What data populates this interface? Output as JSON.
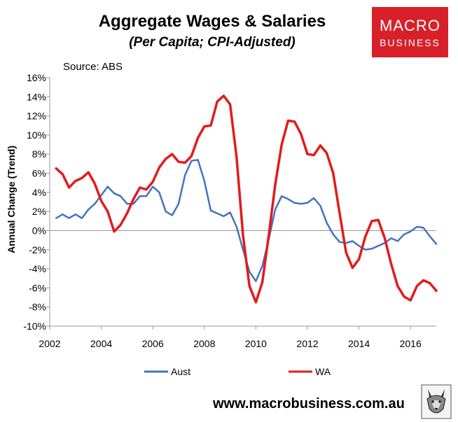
{
  "header": {
    "title": "Aggregate Wages & Salaries",
    "subtitle": "(Per Capita; CPI-Adjusted)",
    "source": "Source: ABS"
  },
  "logo": {
    "line1": "MACRO",
    "line2": "BUSINESS",
    "color": "#d8202a"
  },
  "footer": {
    "url": "www.macrobusiness.com.au",
    "mascot_icon": "wolf-icon"
  },
  "chart_data": {
    "type": "line",
    "title": "Aggregate Wages & Salaries",
    "subtitle": "(Per Capita; CPI-Adjusted)",
    "xlabel": "",
    "ylabel": "Annual Change (Trend)",
    "xlim": [
      2002,
      2017
    ],
    "ylim": [
      -10,
      16
    ],
    "x_ticks": [
      2002,
      2004,
      2006,
      2008,
      2010,
      2012,
      2014,
      2016
    ],
    "x_tick_labels": [
      "2002",
      "2004",
      "2006",
      "2008",
      "2010",
      "2012",
      "2014",
      "2016"
    ],
    "y_ticks": [
      -10,
      -8,
      -6,
      -4,
      -2,
      0,
      2,
      4,
      6,
      8,
      10,
      12,
      14,
      16
    ],
    "y_tick_labels": [
      "-10%",
      "-8%",
      "-6%",
      "-4%",
      "-2%",
      "0%",
      "2%",
      "4%",
      "6%",
      "8%",
      "10%",
      "12%",
      "14%",
      "16%"
    ],
    "grid": false,
    "legend_position": "bottom",
    "x": [
      2002.25,
      2002.5,
      2002.75,
      2003.0,
      2003.25,
      2003.5,
      2003.75,
      2004.0,
      2004.25,
      2004.5,
      2004.75,
      2005.0,
      2005.25,
      2005.5,
      2005.75,
      2006.0,
      2006.25,
      2006.5,
      2006.75,
      2007.0,
      2007.25,
      2007.5,
      2007.75,
      2008.0,
      2008.25,
      2008.5,
      2008.75,
      2009.0,
      2009.25,
      2009.5,
      2009.75,
      2010.0,
      2010.25,
      2010.5,
      2010.75,
      2011.0,
      2011.25,
      2011.5,
      2011.75,
      2012.0,
      2012.25,
      2012.5,
      2012.75,
      2013.0,
      2013.25,
      2013.5,
      2013.75,
      2014.0,
      2014.25,
      2014.5,
      2014.75,
      2015.0,
      2015.25,
      2015.5,
      2015.75,
      2016.0,
      2016.25,
      2016.5,
      2016.75,
      2017.0
    ],
    "series": [
      {
        "name": "Aust",
        "color": "#4472c4",
        "values": [
          1.3,
          1.7,
          1.3,
          1.7,
          1.3,
          2.2,
          2.8,
          3.7,
          4.6,
          3.9,
          3.6,
          2.8,
          2.8,
          3.6,
          3.6,
          4.6,
          4.0,
          2.0,
          1.6,
          2.8,
          5.8,
          7.3,
          7.4,
          5.2,
          2.1,
          1.8,
          1.5,
          1.9,
          0.4,
          -2.0,
          -4.3,
          -5.3,
          -3.7,
          -0.9,
          2.2,
          3.6,
          3.3,
          2.9,
          2.8,
          2.9,
          3.4,
          2.6,
          0.8,
          -0.4,
          -1.2,
          -1.3,
          -1.1,
          -1.6,
          -2.0,
          -1.9,
          -1.6,
          -1.3,
          -0.8,
          -1.1,
          -0.4,
          -0.1,
          0.4,
          0.3,
          -0.6,
          -1.4
        ]
      },
      {
        "name": "WA",
        "color": "#e31b1b",
        "values": [
          6.5,
          5.9,
          4.5,
          5.2,
          5.5,
          6.1,
          4.9,
          3.1,
          2.0,
          -0.1,
          0.6,
          1.8,
          3.3,
          4.5,
          4.3,
          5.1,
          6.6,
          7.5,
          8.0,
          7.2,
          7.1,
          7.8,
          9.7,
          10.9,
          11.0,
          13.5,
          14.1,
          13.2,
          7.7,
          -0.5,
          -5.8,
          -7.5,
          -5.4,
          -0.5,
          4.8,
          9.0,
          11.5,
          11.4,
          10.1,
          8.0,
          7.9,
          8.9,
          8.1,
          6.0,
          1.8,
          -2.3,
          -3.9,
          -3.0,
          -0.6,
          1.0,
          1.1,
          -0.8,
          -3.5,
          -5.8,
          -6.9,
          -7.3,
          -5.8,
          -5.2,
          -5.5,
          -6.3
        ]
      }
    ]
  }
}
